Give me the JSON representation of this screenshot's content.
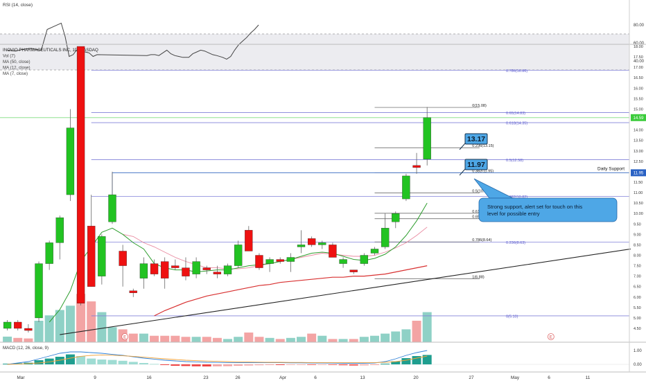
{
  "rsi_panel": {
    "label": "RSI (14, close)",
    "ticks": [
      "80.00",
      "60.00",
      "40.00"
    ],
    "band": [
      30,
      70
    ],
    "points": [
      [
        0,
        46
      ],
      [
        2,
        47
      ],
      [
        4,
        47
      ],
      [
        6,
        46
      ],
      [
        8,
        49
      ],
      [
        10,
        52
      ],
      [
        12,
        48
      ],
      [
        14,
        46
      ],
      [
        16,
        45
      ],
      [
        18,
        44
      ],
      [
        21,
        44
      ],
      [
        23,
        48
      ],
      [
        25,
        50
      ],
      [
        27,
        52
      ],
      [
        29,
        51
      ],
      [
        31,
        49
      ],
      [
        33,
        47
      ],
      [
        35,
        46
      ],
      [
        38,
        44
      ],
      [
        40,
        42
      ],
      [
        42,
        45
      ],
      [
        44,
        52
      ],
      [
        46,
        58
      ],
      [
        48,
        62
      ],
      [
        50,
        66
      ],
      [
        52,
        71
      ],
      [
        54,
        75
      ],
      [
        56,
        80
      ]
    ],
    "early_points": [
      [
        -70,
        52
      ],
      [
        -66,
        51
      ],
      [
        -62,
        53
      ],
      [
        -58,
        54
      ],
      [
        -56,
        53
      ],
      [
        -53,
        52
      ],
      [
        -50,
        75
      ],
      [
        -46,
        79
      ],
      [
        -43,
        82
      ],
      [
        -41,
        67
      ],
      [
        -39,
        45
      ],
      [
        -37,
        47
      ],
      [
        -35,
        53
      ],
      [
        -33,
        51
      ],
      [
        -31,
        50
      ],
      [
        -29,
        49
      ],
      [
        -27,
        45
      ],
      [
        -25,
        47
      ]
    ]
  },
  "main_panel": {
    "legend": [
      "INOVIO PHARMACEUTICALS INC, 1D, NASDAQ",
      "Vol (7)",
      "MA (50, close)",
      "MA (12, close)",
      "MA (7, close)"
    ],
    "price_ticks": [
      "18.00",
      "17.50",
      "17.00",
      "16.50",
      "16.00",
      "15.50",
      "15.00",
      "14.50",
      "14.00",
      "13.50",
      "13.00",
      "12.50",
      "12.00",
      "11.50",
      "11.00",
      "10.50",
      "10.00",
      "9.50",
      "9.00",
      "8.50",
      "8.00",
      "7.50",
      "7.00",
      "6.50",
      "6.00",
      "5.50",
      "5.00",
      "4.50"
    ],
    "last_price_label": "14.59",
    "support_price_label": "11.95",
    "support_label": "Daily Support",
    "callout_1": "13.17",
    "callout_2": "11.97",
    "note": "Strong support, alert set for touch on this level for possible entry",
    "event_markers": [
      "E",
      "E"
    ],
    "fib_left": [
      {
        "label": "0.786(16.86)",
        "price": 16.86
      },
      {
        "label": "0.65(14.83)",
        "price": 14.83
      },
      {
        "label": "0.618(14.35)",
        "price": 14.35
      },
      {
        "label": "0.5(12.58)",
        "price": 12.58
      },
      {
        "label": "0.382(10.82)",
        "price": 10.82
      },
      {
        "label": "0.236(8.63)",
        "price": 8.63
      },
      {
        "label": "0(5.10)",
        "price": 5.1
      }
    ],
    "fib_right": [
      {
        "label": "0(15.08)",
        "price": 15.08
      },
      {
        "label": "0.236(13.15)",
        "price": 13.15
      },
      {
        "label": "0.382(11.95)",
        "price": 11.95
      },
      {
        "label": "0.5(10.98)",
        "price": 10.98
      },
      {
        "label": "0.618(10.01)",
        "price": 10.01
      },
      {
        "label": "0.65(9.75)",
        "price": 9.75
      },
      {
        "label": "0.786(8.64)",
        "price": 8.64
      },
      {
        "label": "1(6.88)",
        "price": 6.88
      }
    ]
  },
  "macd_panel": {
    "label": "MACD (12, 26, close, 9)",
    "ticks": [
      "1.00",
      "0.00"
    ]
  },
  "time_axis": {
    "labels": [
      "Mar",
      "9",
      "16",
      "23",
      "26",
      "Apr",
      "6",
      "13",
      "20",
      "27",
      "May",
      "6",
      "11"
    ]
  },
  "chart_data": {
    "type": "candlestick",
    "colors": {
      "up": "#22c322",
      "down": "#ee1111",
      "ma_green": "#2e9e2e",
      "ma_pink": "#e98aa0",
      "ma_red": "#d83030",
      "trend": "#222222",
      "fib_left": "#8080d8",
      "fib_right": "#555555"
    },
    "candles": [
      {
        "o": 4.5,
        "h": 4.9,
        "l": 4.4,
        "c": 4.8
      },
      {
        "o": 4.8,
        "h": 4.9,
        "l": 4.4,
        "c": 4.5
      },
      {
        "o": 4.5,
        "h": 4.7,
        "l": 4.3,
        "c": 4.4
      },
      {
        "o": 5.0,
        "h": 7.7,
        "l": 4.8,
        "c": 7.6
      },
      {
        "o": 7.6,
        "h": 8.7,
        "l": 7.3,
        "c": 8.6
      },
      {
        "o": 8.6,
        "h": 9.9,
        "l": 7.8,
        "c": 9.8
      },
      {
        "o": 10.9,
        "h": 15.0,
        "l": 10.6,
        "c": 14.1
      },
      {
        "o": 18.0,
        "h": 18.0,
        "l": 5.6,
        "c": 5.7
      },
      {
        "o": 9.4,
        "h": 10.9,
        "l": 6.5,
        "c": 6.5
      },
      {
        "o": 7.0,
        "h": 9.0,
        "l": 6.6,
        "c": 8.9
      },
      {
        "o": 9.6,
        "h": 12.0,
        "l": 9.5,
        "c": 10.9
      },
      {
        "o": 8.2,
        "h": 8.5,
        "l": 6.5,
        "c": 7.5
      },
      {
        "o": 6.3,
        "h": 6.4,
        "l": 6.0,
        "c": 6.2
      },
      {
        "o": 6.9,
        "h": 7.9,
        "l": 6.4,
        "c": 7.6
      },
      {
        "o": 7.6,
        "h": 7.8,
        "l": 7.0,
        "c": 7.1
      },
      {
        "o": 7.7,
        "h": 7.9,
        "l": 6.4,
        "c": 6.9
      },
      {
        "o": 7.5,
        "h": 7.8,
        "l": 7.3,
        "c": 7.4
      },
      {
        "o": 7.4,
        "h": 7.9,
        "l": 6.8,
        "c": 7.0
      },
      {
        "o": 7.1,
        "h": 7.9,
        "l": 6.9,
        "c": 7.7
      },
      {
        "o": 7.4,
        "h": 7.5,
        "l": 7.1,
        "c": 7.3
      },
      {
        "o": 7.2,
        "h": 7.5,
        "l": 6.9,
        "c": 7.1
      },
      {
        "o": 7.1,
        "h": 7.6,
        "l": 7.0,
        "c": 7.5
      },
      {
        "o": 7.5,
        "h": 8.7,
        "l": 7.4,
        "c": 8.5
      },
      {
        "o": 9.2,
        "h": 9.4,
        "l": 8.2,
        "c": 8.2
      },
      {
        "o": 8.0,
        "h": 8.1,
        "l": 7.3,
        "c": 7.4
      },
      {
        "o": 7.6,
        "h": 7.9,
        "l": 7.2,
        "c": 7.8
      },
      {
        "o": 7.8,
        "h": 7.9,
        "l": 7.6,
        "c": 7.7
      },
      {
        "o": 7.7,
        "h": 8.1,
        "l": 7.2,
        "c": 7.9
      },
      {
        "o": 8.4,
        "h": 9.2,
        "l": 8.1,
        "c": 8.5
      },
      {
        "o": 8.8,
        "h": 8.9,
        "l": 8.4,
        "c": 8.5
      },
      {
        "o": 8.5,
        "h": 8.7,
        "l": 8.3,
        "c": 8.6
      },
      {
        "o": 8.5,
        "h": 8.6,
        "l": 7.9,
        "c": 7.9
      },
      {
        "o": 7.6,
        "h": 7.9,
        "l": 7.4,
        "c": 7.8
      },
      {
        "o": 7.3,
        "h": 7.3,
        "l": 7.1,
        "c": 7.2
      },
      {
        "o": 7.6,
        "h": 8.1,
        "l": 7.5,
        "c": 8.0
      },
      {
        "o": 8.1,
        "h": 8.4,
        "l": 8.0,
        "c": 8.3
      },
      {
        "o": 8.4,
        "h": 10.0,
        "l": 8.3,
        "c": 9.3
      },
      {
        "o": 9.6,
        "h": 10.1,
        "l": 9.3,
        "c": 10.0
      },
      {
        "o": 10.7,
        "h": 11.9,
        "l": 10.6,
        "c": 11.8
      },
      {
        "o": 12.3,
        "h": 12.9,
        "l": 11.9,
        "c": 12.2
      },
      {
        "o": 12.6,
        "h": 15.1,
        "l": 12.3,
        "c": 14.59
      }
    ],
    "volume": [
      5.2,
      4.0,
      3.5,
      20.0,
      25.0,
      30.0,
      34.0,
      45.0,
      38.0,
      28.0,
      14.0,
      12.0,
      8.0,
      8.0,
      6.0,
      6.0,
      6.0,
      5.0,
      5.0,
      5.0,
      4.0,
      3.0,
      5.0,
      9.0,
      5.0,
      4.0,
      3.0,
      4.0,
      5.0,
      8.0,
      6.0,
      3.0,
      3.0,
      3.0,
      5.0,
      6.0,
      8.0,
      10.0,
      12.0,
      20.0,
      28.0
    ],
    "ma7": [
      null,
      null,
      null,
      null,
      4.8,
      5.4,
      6.3,
      7.7,
      8.4,
      9.1,
      9.3,
      9.0,
      8.6,
      8.3,
      7.6,
      7.4,
      7.3,
      7.3,
      7.2,
      7.25,
      7.3,
      7.3,
      7.4,
      7.5,
      7.55,
      7.6,
      7.7,
      7.8,
      7.95,
      8.1,
      8.15,
      8.1,
      7.95,
      7.8,
      7.75,
      7.85,
      8.05,
      8.4,
      8.95,
      9.65,
      10.5
    ],
    "ma12": [
      null,
      null,
      null,
      null,
      null,
      null,
      null,
      null,
      null,
      null,
      null,
      9.0,
      8.9,
      8.6,
      8.4,
      8.15,
      7.9,
      7.7,
      7.55,
      7.4,
      7.4,
      7.35,
      7.35,
      7.4,
      7.5,
      7.6,
      7.7,
      7.8,
      7.9,
      8.0,
      8.1,
      8.05,
      8.0,
      7.95,
      7.95,
      8.0,
      8.15,
      8.35,
      8.6,
      8.95,
      9.35
    ],
    "ma50": [
      null,
      null,
      null,
      null,
      null,
      null,
      null,
      null,
      null,
      null,
      null,
      null,
      null,
      null,
      5.1,
      5.35,
      5.55,
      5.75,
      5.9,
      6.05,
      6.15,
      6.25,
      6.35,
      6.45,
      6.55,
      6.6,
      6.7,
      6.75,
      6.8,
      6.85,
      6.9,
      6.95,
      6.95,
      7.0,
      7.0,
      7.05,
      7.1,
      7.2,
      7.3,
      7.4,
      7.5
    ],
    "trendline": {
      "from": [
        5.0,
        4.2
      ],
      "to": [
        59.4,
        8.3
      ]
    },
    "macd_hist": [
      0.05,
      0.08,
      0.12,
      0.3,
      0.42,
      0.55,
      0.72,
      0.6,
      0.42,
      0.35,
      0.32,
      0.26,
      0.18,
      0.1,
      0.03,
      -0.05,
      -0.1,
      -0.12,
      -0.14,
      -0.15,
      -0.14,
      -0.13,
      -0.1,
      -0.08,
      -0.06,
      -0.05,
      -0.05,
      -0.04,
      -0.02,
      -0.02,
      -0.01,
      -0.04,
      -0.06,
      -0.08,
      -0.07,
      -0.05,
      0.05,
      0.22,
      0.45,
      0.6,
      0.68
    ],
    "macd_line": [
      0.0,
      0.1,
      0.2,
      0.4,
      0.6,
      0.8,
      0.9,
      0.9,
      0.85,
      0.8,
      0.72,
      0.65,
      0.55,
      0.45,
      0.38,
      0.3,
      0.25,
      0.2,
      0.18,
      0.15,
      0.14,
      0.13,
      0.12,
      0.12,
      0.12,
      0.12,
      0.12,
      0.11,
      0.11,
      0.1,
      0.1,
      0.09,
      0.08,
      0.07,
      0.08,
      0.1,
      0.2,
      0.4,
      0.65,
      0.85,
      1.0
    ],
    "signal_line": [
      0.0,
      0.02,
      0.06,
      0.1,
      0.18,
      0.3,
      0.45,
      0.58,
      0.65,
      0.68,
      0.66,
      0.62,
      0.58,
      0.52,
      0.46,
      0.4,
      0.35,
      0.3,
      0.27,
      0.24,
      0.22,
      0.2,
      0.18,
      0.17,
      0.16,
      0.15,
      0.15,
      0.14,
      0.14,
      0.13,
      0.13,
      0.13,
      0.12,
      0.12,
      0.12,
      0.13,
      0.15,
      0.2,
      0.3,
      0.45,
      0.6
    ]
  }
}
